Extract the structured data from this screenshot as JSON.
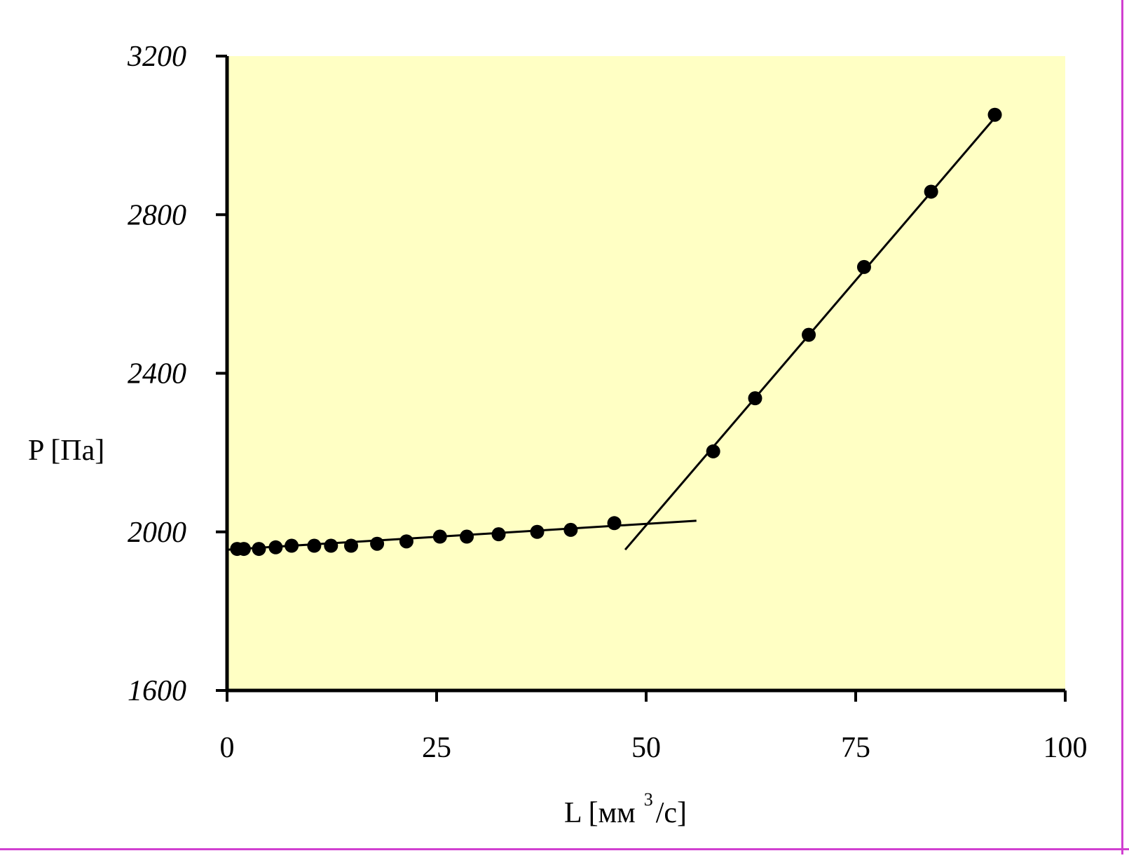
{
  "chart_data": {
    "type": "scatter",
    "title": "",
    "xlabel": "L [мм",
    "xlabel_sup": "3",
    "xlabel_tail": "/с]",
    "ylabel": "P [Па]",
    "xlim": [
      0,
      100
    ],
    "ylim": [
      1600,
      3200
    ],
    "x_ticks": [
      "0",
      "25",
      "50",
      "75",
      "100"
    ],
    "y_ticks": [
      "1600",
      "2000",
      "2400",
      "2800",
      "3200"
    ],
    "grid": false,
    "legend": "none",
    "plot_background": "#ffffc4",
    "marker_color": "#000000",
    "series": [
      {
        "points": [
          [
            1.2,
            1957
          ],
          [
            2.0,
            1957
          ],
          [
            3.8,
            1957
          ],
          [
            5.8,
            1961
          ],
          [
            7.7,
            1965
          ],
          [
            10.4,
            1965
          ],
          [
            12.4,
            1965
          ],
          [
            14.8,
            1965
          ],
          [
            17.9,
            1970
          ],
          [
            21.4,
            1976
          ],
          [
            25.4,
            1988
          ],
          [
            28.6,
            1988
          ],
          [
            32.4,
            1994
          ],
          [
            37.0,
            2000
          ],
          [
            41.0,
            2005
          ],
          [
            46.2,
            2022
          ]
        ]
      },
      {
        "points": [
          [
            58.0,
            2203
          ],
          [
            63.0,
            2337
          ],
          [
            69.4,
            2497
          ],
          [
            76.0,
            2668
          ],
          [
            84.0,
            2858
          ],
          [
            91.6,
            3052
          ]
        ]
      }
    ],
    "fit_lines": [
      {
        "x1": 0.0,
        "y1": 1955,
        "x2": 56.0,
        "y2": 2028
      },
      {
        "x1": 47.5,
        "y1": 1955,
        "x2": 91.9,
        "y2": 3052
      }
    ]
  }
}
